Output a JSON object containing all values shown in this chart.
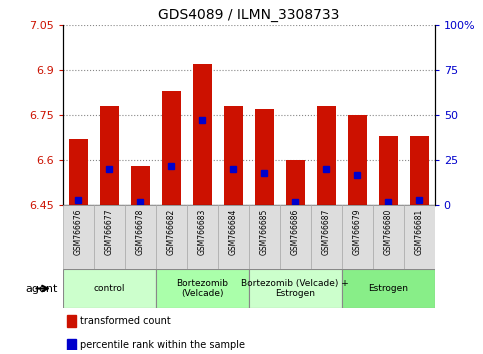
{
  "title": "GDS4089 / ILMN_3308733",
  "samples": [
    "GSM766676",
    "GSM766677",
    "GSM766678",
    "GSM766682",
    "GSM766683",
    "GSM766684",
    "GSM766685",
    "GSM766686",
    "GSM766687",
    "GSM766679",
    "GSM766680",
    "GSM766681"
  ],
  "transformed_count": [
    6.67,
    6.78,
    6.58,
    6.83,
    6.92,
    6.78,
    6.77,
    6.6,
    6.78,
    6.75,
    6.68,
    6.68
  ],
  "percentile_rank": [
    3,
    20,
    2,
    22,
    47,
    20,
    18,
    2,
    20,
    17,
    2,
    3
  ],
  "y_min": 6.45,
  "y_max": 7.05,
  "y_ticks": [
    6.45,
    6.6,
    6.75,
    6.9,
    7.05
  ],
  "y_tick_labels": [
    "6.45",
    "6.6",
    "6.75",
    "6.9",
    "7.05"
  ],
  "right_y_ticks": [
    0,
    25,
    50,
    75,
    100
  ],
  "right_y_labels": [
    "0",
    "25",
    "50",
    "75",
    "100%"
  ],
  "bar_color": "#cc1100",
  "dot_color": "#0000cc",
  "groups": [
    {
      "label": "control",
      "start": 0,
      "end": 3,
      "color": "#ccffcc"
    },
    {
      "label": "Bortezomib\n(Velcade)",
      "start": 3,
      "end": 6,
      "color": "#aaffaa"
    },
    {
      "label": "Bortezomib (Velcade) +\nEstrogen",
      "start": 6,
      "end": 9,
      "color": "#ccffcc"
    },
    {
      "label": "Estrogen",
      "start": 9,
      "end": 12,
      "color": "#88ee88"
    }
  ],
  "agent_label": "agent",
  "legend_items": [
    {
      "color": "#cc1100",
      "label": "transformed count"
    },
    {
      "color": "#0000cc",
      "label": "percentile rank within the sample"
    }
  ],
  "bar_width": 0.6,
  "tick_color_left": "#cc1100",
  "tick_color_right": "#0000cc",
  "grid_color": "#888888",
  "bg_color": "#ffffff"
}
